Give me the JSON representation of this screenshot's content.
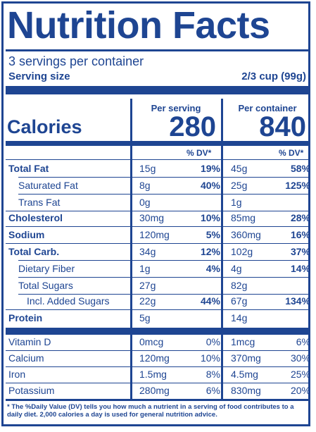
{
  "title": "Nutrition Facts",
  "servings_per_container": "3 servings per container",
  "serving_size_label": "Serving size",
  "serving_size_value": "2/3 cup (99g)",
  "calories_label": "Calories",
  "per_serving_label": "Per serving",
  "per_container_label": "Per container",
  "calories_per_serving": "280",
  "calories_per_container": "840",
  "dv_label": "% DV*",
  "nutrients": [
    {
      "name": "Total Fat",
      "bold": true,
      "indent": 0,
      "s_amt": "15g",
      "s_dv": "19%",
      "c_amt": "45g",
      "c_dv": "58%"
    },
    {
      "name": "Saturated Fat",
      "bold": false,
      "indent": 1,
      "s_amt": "8g",
      "s_dv": "40%",
      "c_amt": "25g",
      "c_dv": "125%"
    },
    {
      "name": "Trans Fat",
      "bold": false,
      "indent": 1,
      "s_amt": "0g",
      "s_dv": "",
      "c_amt": "1g",
      "c_dv": ""
    },
    {
      "name": "Cholesterol",
      "bold": true,
      "indent": 0,
      "s_amt": "30mg",
      "s_dv": "10%",
      "c_amt": "85mg",
      "c_dv": "28%"
    },
    {
      "name": "Sodium",
      "bold": true,
      "indent": 0,
      "s_amt": "120mg",
      "s_dv": "5%",
      "c_amt": "360mg",
      "c_dv": "16%"
    },
    {
      "name": "Total Carb.",
      "bold": true,
      "indent": 0,
      "s_amt": "34g",
      "s_dv": "12%",
      "c_amt": "102g",
      "c_dv": "37%"
    },
    {
      "name": "Dietary Fiber",
      "bold": false,
      "indent": 1,
      "s_amt": "1g",
      "s_dv": "4%",
      "c_amt": "4g",
      "c_dv": "14%"
    },
    {
      "name": "Total Sugars",
      "bold": false,
      "indent": 1,
      "s_amt": "27g",
      "s_dv": "",
      "c_amt": "82g",
      "c_dv": ""
    },
    {
      "name": "Incl. Added Sugars",
      "bold": false,
      "indent": 2,
      "s_amt": "22g",
      "s_dv": "44%",
      "c_amt": "67g",
      "c_dv": "134%"
    },
    {
      "name": "Protein",
      "bold": true,
      "indent": 0,
      "s_amt": "5g",
      "s_dv": "",
      "c_amt": "14g",
      "c_dv": ""
    }
  ],
  "vitamins": [
    {
      "name": "Vitamin D",
      "s_amt": "0mcg",
      "s_dv": "0%",
      "c_amt": "1mcg",
      "c_dv": "6%"
    },
    {
      "name": "Calcium",
      "s_amt": "120mg",
      "s_dv": "10%",
      "c_amt": "370mg",
      "c_dv": "30%"
    },
    {
      "name": "Iron",
      "s_amt": "1.5mg",
      "s_dv": "8%",
      "c_amt": "4.5mg",
      "c_dv": "25%"
    },
    {
      "name": "Potassium",
      "s_amt": "280mg",
      "s_dv": "6%",
      "c_amt": "830mg",
      "c_dv": "20%"
    }
  ],
  "footnote": "* The %Daily Value (DV) tells you how much a nutrient in a serving of food contributes to a daily diet. 2,000 calories a day is used for general nutrition advice.",
  "colors": {
    "ink": "#1e4592",
    "background": "#ffffff"
  }
}
